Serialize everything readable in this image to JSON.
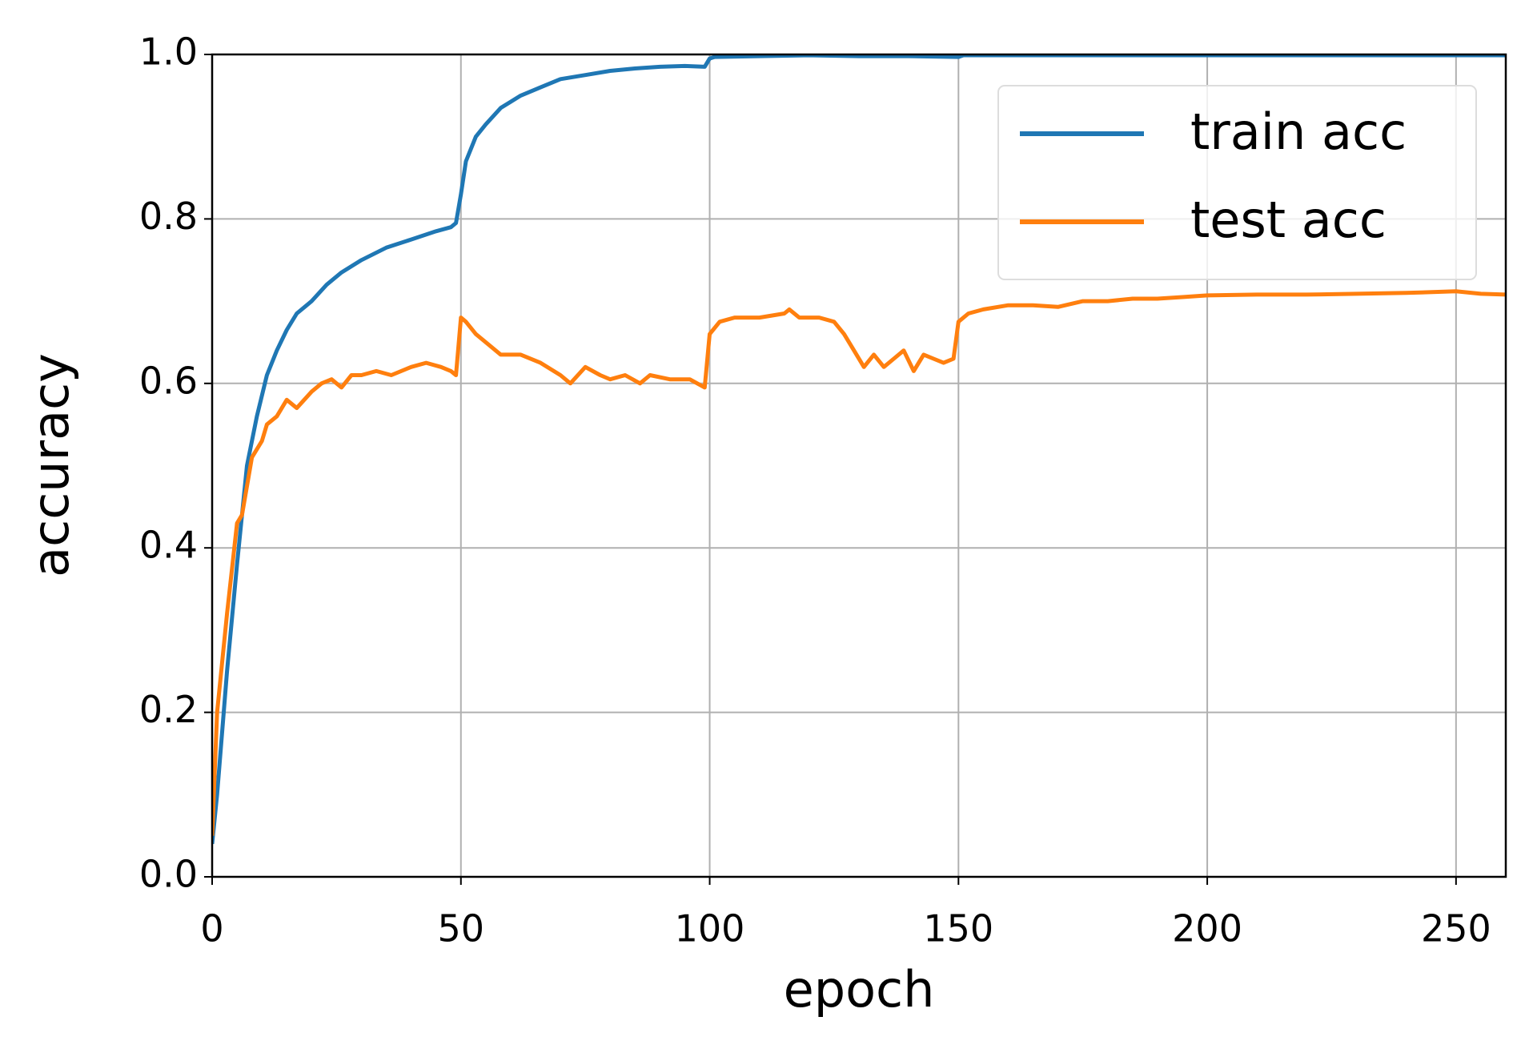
{
  "chart_data": {
    "type": "line",
    "xlabel": "epoch",
    "ylabel": "accuracy",
    "xlim": [
      0,
      260
    ],
    "ylim": [
      0,
      1
    ],
    "xticks": [
      0,
      50,
      100,
      150,
      200,
      250
    ],
    "yticks": [
      {
        "value": 0,
        "label": "0.0"
      },
      {
        "value": 0.2,
        "label": "0.2"
      },
      {
        "value": 0.4,
        "label": "0.4"
      },
      {
        "value": 0.6,
        "label": "0.6"
      },
      {
        "value": 0.8,
        "label": "0.8"
      },
      {
        "value": 1,
        "label": "1.0"
      }
    ],
    "grid": true,
    "legend": "upper right",
    "series": [
      {
        "name": "train acc",
        "color": "#1f77b4",
        "x": [
          0,
          1,
          3,
          5,
          7,
          9,
          11,
          13,
          15,
          17,
          20,
          23,
          26,
          30,
          35,
          40,
          45,
          48,
          49,
          50,
          51,
          53,
          55,
          58,
          62,
          66,
          70,
          75,
          80,
          85,
          90,
          95,
          99,
          100,
          101,
          110,
          120,
          130,
          140,
          150,
          151,
          160,
          180,
          200,
          220,
          240,
          260
        ],
        "values": [
          0.04,
          0.1,
          0.25,
          0.38,
          0.5,
          0.56,
          0.61,
          0.64,
          0.665,
          0.685,
          0.7,
          0.72,
          0.735,
          0.75,
          0.765,
          0.775,
          0.785,
          0.79,
          0.795,
          0.83,
          0.87,
          0.9,
          0.915,
          0.935,
          0.95,
          0.96,
          0.97,
          0.975,
          0.98,
          0.983,
          0.985,
          0.986,
          0.985,
          0.995,
          0.997,
          0.998,
          0.999,
          0.998,
          0.998,
          0.997,
          0.999,
          0.999,
          0.999,
          0.999,
          0.999,
          0.999,
          0.999
        ]
      },
      {
        "name": "test acc",
        "color": "#ff7f0e",
        "x": [
          0,
          1,
          3,
          5,
          6,
          8,
          10,
          11,
          13,
          15,
          17,
          20,
          22,
          24,
          26,
          28,
          30,
          33,
          36,
          40,
          43,
          46,
          48,
          49,
          50,
          51,
          53,
          55,
          58,
          62,
          66,
          70,
          72,
          75,
          78,
          80,
          83,
          86,
          88,
          92,
          96,
          99,
          100,
          102,
          105,
          110,
          115,
          116,
          118,
          122,
          125,
          127,
          129,
          131,
          133,
          135,
          137,
          139,
          141,
          143,
          145,
          147,
          149,
          150,
          152,
          155,
          160,
          165,
          170,
          175,
          180,
          185,
          190,
          195,
          200,
          210,
          220,
          230,
          240,
          250,
          255,
          260
        ],
        "values": [
          0.05,
          0.2,
          0.32,
          0.43,
          0.44,
          0.51,
          0.53,
          0.55,
          0.56,
          0.58,
          0.57,
          0.59,
          0.6,
          0.605,
          0.595,
          0.61,
          0.61,
          0.615,
          0.61,
          0.62,
          0.625,
          0.62,
          0.615,
          0.61,
          0.68,
          0.675,
          0.66,
          0.65,
          0.635,
          0.635,
          0.625,
          0.61,
          0.6,
          0.62,
          0.61,
          0.605,
          0.61,
          0.6,
          0.61,
          0.605,
          0.605,
          0.595,
          0.66,
          0.675,
          0.68,
          0.68,
          0.685,
          0.69,
          0.68,
          0.68,
          0.675,
          0.66,
          0.64,
          0.62,
          0.635,
          0.62,
          0.63,
          0.64,
          0.615,
          0.635,
          0.63,
          0.625,
          0.63,
          0.675,
          0.685,
          0.69,
          0.695,
          0.695,
          0.693,
          0.7,
          0.7,
          0.703,
          0.703,
          0.705,
          0.707,
          0.708,
          0.708,
          0.709,
          0.71,
          0.712,
          0.709,
          0.708
        ]
      }
    ]
  }
}
